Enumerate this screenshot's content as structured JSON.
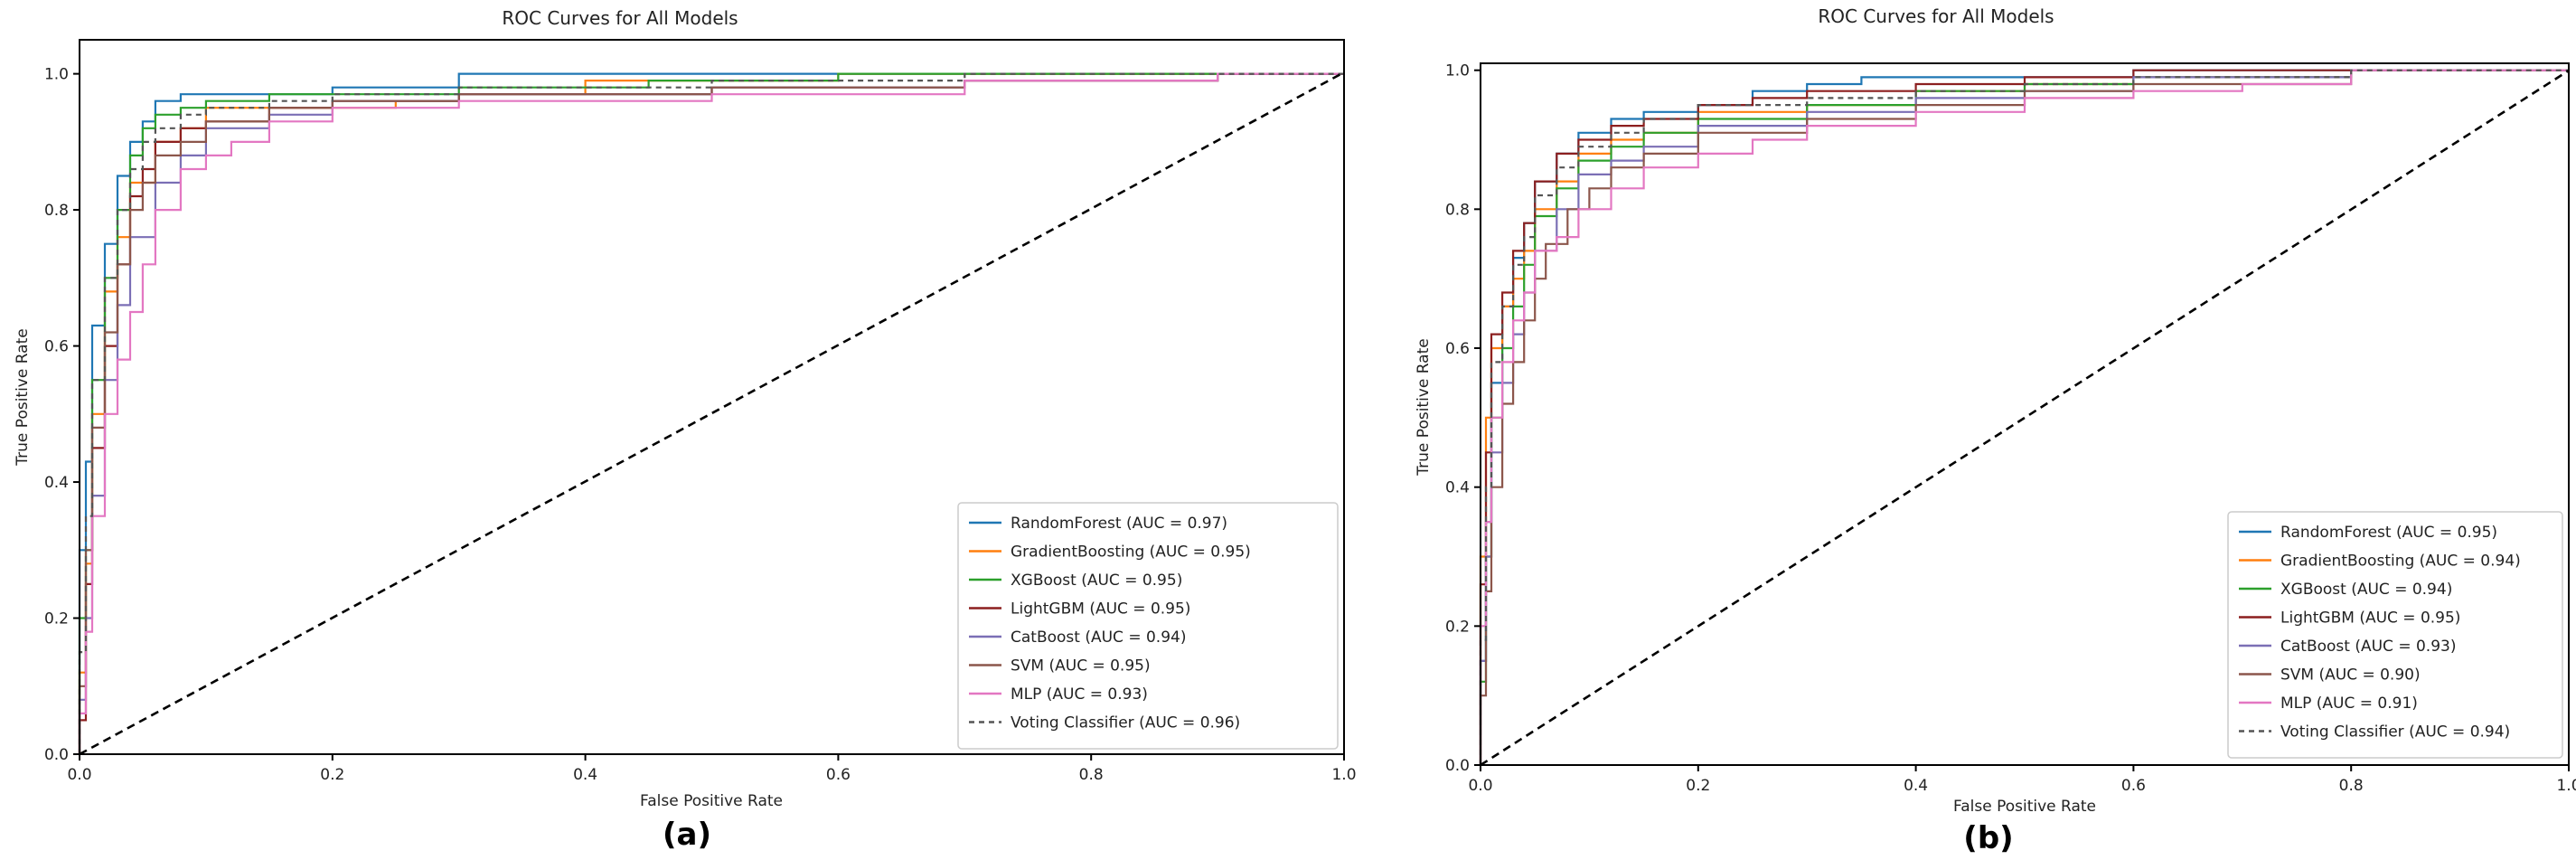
{
  "colors": {
    "RandomForest": "#1f77b4",
    "GradientBoosting": "#ff7f0e",
    "XGBoost": "#2ca02c",
    "LightGBM": "#8c1f1f",
    "CatBoost": "#7b6fb5",
    "SVM": "#8c564b",
    "MLP": "#e377c2",
    "Voting": "#555555"
  },
  "chart_data": [
    {
      "type": "line",
      "panel_label": "(a)",
      "title": "ROC Curves for All Models",
      "xlabel": "False Positive Rate",
      "ylabel": "True Positive Rate",
      "xlim": [
        0,
        1
      ],
      "ylim": [
        0,
        1.05
      ],
      "xticks": [
        "0.0",
        "0.2",
        "0.4",
        "0.6",
        "0.8",
        "1.0"
      ],
      "yticks": [
        "0.0",
        "0.2",
        "0.4",
        "0.6",
        "0.8",
        "1.0"
      ],
      "grid": false,
      "legend_position": "lower-right",
      "series": [
        {
          "name": "RandomForest (AUC = 0.97)",
          "color_key": "RandomForest",
          "x": [
            0,
            0,
            0.005,
            0.01,
            0.02,
            0.03,
            0.04,
            0.05,
            0.06,
            0.08,
            0.1,
            0.15,
            0.2,
            0.3,
            0.45,
            0.6,
            0.8,
            1
          ],
          "y": [
            0,
            0.25,
            0.3,
            0.43,
            0.63,
            0.75,
            0.85,
            0.9,
            0.93,
            0.96,
            0.97,
            0.97,
            0.97,
            0.98,
            1.0,
            1.0,
            1.0,
            1.0
          ]
        },
        {
          "name": "GradientBoosting (AUC = 0.95)",
          "color_key": "GradientBoosting",
          "x": [
            0,
            0.005,
            0.01,
            0.02,
            0.03,
            0.04,
            0.06,
            0.08,
            0.1,
            0.15,
            0.2,
            0.25,
            0.3,
            0.4,
            0.6,
            0.8,
            1
          ],
          "y": [
            0,
            0.12,
            0.28,
            0.5,
            0.68,
            0.76,
            0.84,
            0.9,
            0.92,
            0.95,
            0.95,
            0.95,
            0.96,
            0.97,
            0.99,
            1.0,
            1.0
          ]
        },
        {
          "name": "XGBoost (AUC = 0.95)",
          "color_key": "XGBoost",
          "x": [
            0,
            0.005,
            0.01,
            0.02,
            0.03,
            0.04,
            0.05,
            0.06,
            0.08,
            0.1,
            0.15,
            0.2,
            0.3,
            0.45,
            0.6,
            0.8,
            1
          ],
          "y": [
            0,
            0.2,
            0.3,
            0.55,
            0.7,
            0.8,
            0.88,
            0.92,
            0.94,
            0.95,
            0.96,
            0.97,
            0.97,
            0.98,
            0.99,
            1.0,
            1.0
          ]
        },
        {
          "name": "LightGBM (AUC = 0.95)",
          "color_key": "LightGBM",
          "x": [
            0,
            0.005,
            0.01,
            0.02,
            0.03,
            0.04,
            0.05,
            0.06,
            0.08,
            0.1,
            0.15,
            0.2,
            0.3,
            0.5,
            0.7,
            0.9,
            1
          ],
          "y": [
            0,
            0.05,
            0.25,
            0.45,
            0.6,
            0.72,
            0.82,
            0.86,
            0.9,
            0.92,
            0.93,
            0.95,
            0.96,
            0.97,
            0.98,
            0.99,
            1.0
          ]
        },
        {
          "name": "CatBoost (AUC = 0.94)",
          "color_key": "CatBoost",
          "x": [
            0,
            0.005,
            0.01,
            0.02,
            0.03,
            0.04,
            0.06,
            0.08,
            0.1,
            0.15,
            0.2,
            0.3,
            0.5,
            0.7,
            0.9,
            1
          ],
          "y": [
            0,
            0.08,
            0.2,
            0.38,
            0.55,
            0.66,
            0.76,
            0.84,
            0.88,
            0.92,
            0.94,
            0.96,
            0.97,
            0.98,
            0.99,
            1.0
          ]
        },
        {
          "name": "SVM (AUC = 0.95)",
          "color_key": "SVM",
          "x": [
            0,
            0.005,
            0.01,
            0.02,
            0.03,
            0.04,
            0.05,
            0.06,
            0.08,
            0.1,
            0.15,
            0.2,
            0.3,
            0.5,
            0.7,
            0.9,
            1
          ],
          "y": [
            0,
            0.1,
            0.3,
            0.48,
            0.62,
            0.72,
            0.8,
            0.84,
            0.88,
            0.9,
            0.93,
            0.95,
            0.96,
            0.97,
            0.98,
            0.99,
            1.0
          ]
        },
        {
          "name": "MLP (AUC = 0.93)",
          "color_key": "MLP",
          "x": [
            0,
            0.005,
            0.01,
            0.02,
            0.03,
            0.04,
            0.05,
            0.06,
            0.08,
            0.1,
            0.12,
            0.15,
            0.2,
            0.3,
            0.5,
            0.7,
            0.9,
            1
          ],
          "y": [
            0,
            0.06,
            0.18,
            0.35,
            0.5,
            0.58,
            0.65,
            0.72,
            0.8,
            0.86,
            0.88,
            0.9,
            0.93,
            0.95,
            0.96,
            0.97,
            0.99,
            1.0
          ]
        },
        {
          "name": "Voting Classifier (AUC = 0.96)",
          "color_key": "Voting",
          "dashed": true,
          "x": [
            0,
            0.005,
            0.01,
            0.02,
            0.03,
            0.04,
            0.05,
            0.06,
            0.08,
            0.1,
            0.15,
            0.2,
            0.3,
            0.5,
            0.7,
            0.9,
            1
          ],
          "y": [
            0,
            0.15,
            0.35,
            0.55,
            0.7,
            0.8,
            0.86,
            0.9,
            0.92,
            0.94,
            0.95,
            0.96,
            0.97,
            0.98,
            0.99,
            1.0,
            1.0
          ]
        }
      ]
    },
    {
      "type": "line",
      "panel_label": "(b)",
      "title": "ROC Curves for All Models",
      "xlabel": "False Positive Rate",
      "ylabel": "True Positive Rate",
      "xlim": [
        0,
        1
      ],
      "ylim": [
        0,
        1.01
      ],
      "xticks": [
        "0.0",
        "0.2",
        "0.4",
        "0.6",
        "0.8",
        "1.0"
      ],
      "yticks": [
        "0.0",
        "0.2",
        "0.4",
        "0.6",
        "0.8",
        "1.0"
      ],
      "grid": false,
      "legend_position": "lower-right",
      "series": [
        {
          "name": "RandomForest (AUC = 0.95)",
          "color_key": "RandomForest",
          "x": [
            0,
            0.005,
            0.01,
            0.02,
            0.03,
            0.04,
            0.05,
            0.07,
            0.09,
            0.12,
            0.15,
            0.2,
            0.25,
            0.3,
            0.35,
            0.4,
            0.5,
            0.6,
            0.8,
            1
          ],
          "y": [
            0,
            0.15,
            0.35,
            0.55,
            0.66,
            0.73,
            0.78,
            0.84,
            0.88,
            0.91,
            0.93,
            0.94,
            0.95,
            0.97,
            0.98,
            0.99,
            0.99,
            0.99,
            1.0,
            1.0
          ]
        },
        {
          "name": "GradientBoosting (AUC = 0.94)",
          "color_key": "GradientBoosting",
          "x": [
            0,
            0.005,
            0.01,
            0.02,
            0.03,
            0.04,
            0.05,
            0.07,
            0.09,
            0.12,
            0.15,
            0.2,
            0.3,
            0.4,
            0.5,
            0.6,
            0.8,
            1
          ],
          "y": [
            0,
            0.3,
            0.5,
            0.6,
            0.66,
            0.7,
            0.74,
            0.8,
            0.84,
            0.88,
            0.9,
            0.91,
            0.94,
            0.95,
            0.97,
            0.98,
            0.99,
            1.0
          ]
        },
        {
          "name": "XGBoost (AUC = 0.94)",
          "color_key": "XGBoost",
          "x": [
            0,
            0.005,
            0.01,
            0.02,
            0.03,
            0.04,
            0.05,
            0.07,
            0.09,
            0.12,
            0.15,
            0.2,
            0.3,
            0.4,
            0.5,
            0.6,
            0.8,
            1
          ],
          "y": [
            0,
            0.12,
            0.3,
            0.5,
            0.6,
            0.66,
            0.72,
            0.79,
            0.83,
            0.87,
            0.89,
            0.91,
            0.93,
            0.95,
            0.97,
            0.98,
            0.99,
            1.0
          ]
        },
        {
          "name": "LightGBM (AUC = 0.95)",
          "color_key": "LightGBM",
          "x": [
            0,
            0.005,
            0.01,
            0.02,
            0.03,
            0.04,
            0.05,
            0.07,
            0.09,
            0.12,
            0.15,
            0.2,
            0.25,
            0.3,
            0.4,
            0.5,
            0.6,
            0.8,
            1
          ],
          "y": [
            0,
            0.26,
            0.45,
            0.62,
            0.68,
            0.74,
            0.78,
            0.84,
            0.88,
            0.9,
            0.92,
            0.93,
            0.95,
            0.96,
            0.97,
            0.98,
            0.99,
            1.0,
            1.0
          ]
        },
        {
          "name": "CatBoost (AUC = 0.93)",
          "color_key": "CatBoost",
          "x": [
            0,
            0.005,
            0.01,
            0.02,
            0.03,
            0.04,
            0.05,
            0.07,
            0.09,
            0.12,
            0.15,
            0.2,
            0.3,
            0.4,
            0.5,
            0.6,
            0.8,
            1
          ],
          "y": [
            0,
            0.15,
            0.3,
            0.45,
            0.55,
            0.62,
            0.68,
            0.74,
            0.8,
            0.85,
            0.87,
            0.89,
            0.92,
            0.94,
            0.96,
            0.97,
            0.99,
            1.0
          ]
        },
        {
          "name": "SVM (AUC = 0.90)",
          "color_key": "SVM",
          "x": [
            0,
            0.005,
            0.01,
            0.02,
            0.03,
            0.04,
            0.05,
            0.06,
            0.08,
            0.1,
            0.12,
            0.15,
            0.2,
            0.3,
            0.4,
            0.5,
            0.6,
            0.8,
            1
          ],
          "y": [
            0,
            0.1,
            0.25,
            0.4,
            0.52,
            0.58,
            0.64,
            0.7,
            0.75,
            0.8,
            0.83,
            0.86,
            0.88,
            0.91,
            0.93,
            0.95,
            0.97,
            0.98,
            1.0
          ]
        },
        {
          "name": "MLP (AUC = 0.91)",
          "color_key": "MLP",
          "x": [
            0,
            0.005,
            0.01,
            0.02,
            0.03,
            0.04,
            0.05,
            0.07,
            0.09,
            0.12,
            0.15,
            0.2,
            0.25,
            0.3,
            0.4,
            0.5,
            0.6,
            0.7,
            0.8,
            1
          ],
          "y": [
            0,
            0.2,
            0.35,
            0.5,
            0.58,
            0.64,
            0.68,
            0.74,
            0.76,
            0.8,
            0.83,
            0.86,
            0.88,
            0.9,
            0.92,
            0.94,
            0.96,
            0.97,
            0.98,
            1.0
          ]
        },
        {
          "name": "Voting Classifier (AUC = 0.94)",
          "color_key": "Voting",
          "dashed": true,
          "x": [
            0,
            0.005,
            0.01,
            0.02,
            0.03,
            0.04,
            0.05,
            0.07,
            0.09,
            0.12,
            0.15,
            0.2,
            0.3,
            0.4,
            0.5,
            0.6,
            0.8,
            1
          ],
          "y": [
            0,
            0.18,
            0.4,
            0.58,
            0.66,
            0.72,
            0.76,
            0.82,
            0.86,
            0.89,
            0.91,
            0.93,
            0.95,
            0.96,
            0.97,
            0.98,
            0.99,
            1.0
          ]
        }
      ]
    }
  ]
}
